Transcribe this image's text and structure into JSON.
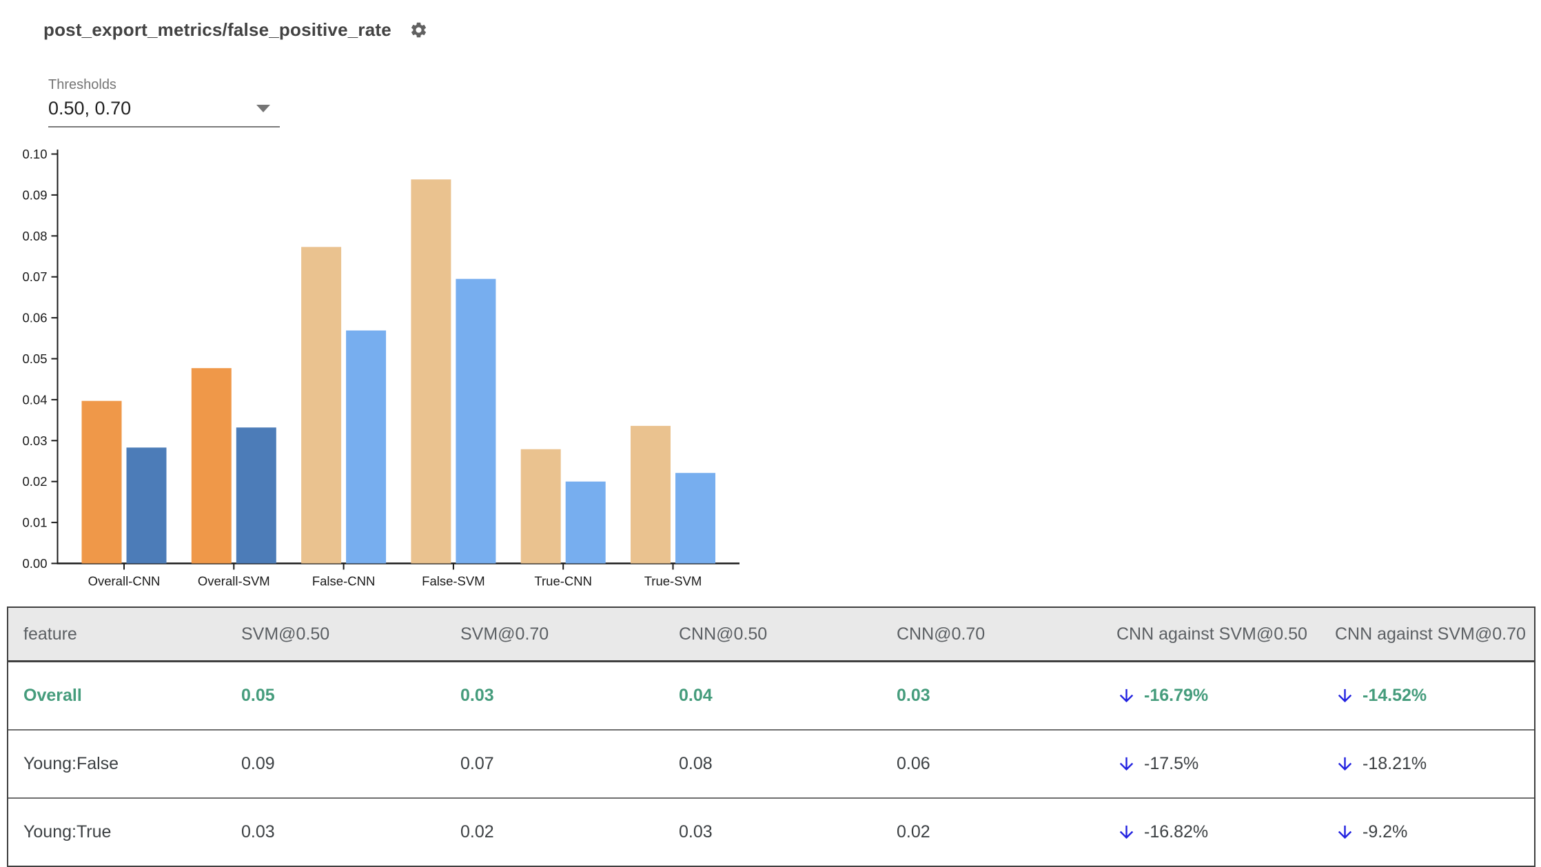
{
  "header": {
    "title": "post_export_metrics/false_positive_rate",
    "settings_icon": "gear-icon"
  },
  "thresholds": {
    "label": "Thresholds",
    "value": "0.50, 0.70",
    "dropdown_icon": "caret-down-icon"
  },
  "chart_data": {
    "type": "bar",
    "title": "",
    "xlabel": "",
    "ylabel": "",
    "ylim": [
      0,
      0.1
    ],
    "ytick_step": 0.01,
    "grid": false,
    "legend": "none",
    "categories": [
      "Overall-CNN",
      "Overall-SVM",
      "False-CNN",
      "False-SVM",
      "True-CNN",
      "True-SVM"
    ],
    "series": [
      {
        "name": "threshold 0.50",
        "values": [
          0.0397,
          0.0477,
          0.0773,
          0.0938,
          0.0279,
          0.0336
        ]
      },
      {
        "name": "threshold 0.70",
        "values": [
          0.0283,
          0.0332,
          0.0569,
          0.0695,
          0.02,
          0.0221
        ]
      }
    ],
    "highlight_categories": [
      "Overall-CNN",
      "Overall-SVM"
    ],
    "bar_colors": {
      "highlight": [
        "#EF9849",
        "#4C7CB8"
      ],
      "muted": [
        "#EAC28F",
        "#77AEEF"
      ]
    }
  },
  "table": {
    "columns": [
      "feature",
      "SVM@0.50",
      "SVM@0.70",
      "CNN@0.50",
      "CNN@0.70",
      "CNN against SVM@0.50",
      "CNN against SVM@0.70"
    ],
    "rows": [
      {
        "feature": "Overall",
        "highlight": true,
        "values": [
          "0.05",
          "0.03",
          "0.04",
          "0.03"
        ],
        "deltas": [
          {
            "direction": "down",
            "icon": "arrow-down-icon",
            "text": "-16.79%"
          },
          {
            "direction": "down",
            "icon": "arrow-down-icon",
            "text": "-14.52%"
          }
        ]
      },
      {
        "feature": "Young:False",
        "highlight": false,
        "values": [
          "0.09",
          "0.07",
          "0.08",
          "0.06"
        ],
        "deltas": [
          {
            "direction": "down",
            "icon": "arrow-down-icon",
            "text": "-17.5%"
          },
          {
            "direction": "down",
            "icon": "arrow-down-icon",
            "text": "-18.21%"
          }
        ]
      },
      {
        "feature": "Young:True",
        "highlight": false,
        "values": [
          "0.03",
          "0.02",
          "0.03",
          "0.02"
        ],
        "deltas": [
          {
            "direction": "down",
            "icon": "arrow-down-icon",
            "text": "-16.82%"
          },
          {
            "direction": "down",
            "icon": "arrow-down-icon",
            "text": "-9.2%"
          }
        ]
      }
    ],
    "colors": {
      "highlight_text": "#459C7C",
      "arrow_blue": "#2323E0",
      "header_bg": "#E9E9E9",
      "header_text": "#5B5F63",
      "body_text": "#3C4043"
    }
  }
}
